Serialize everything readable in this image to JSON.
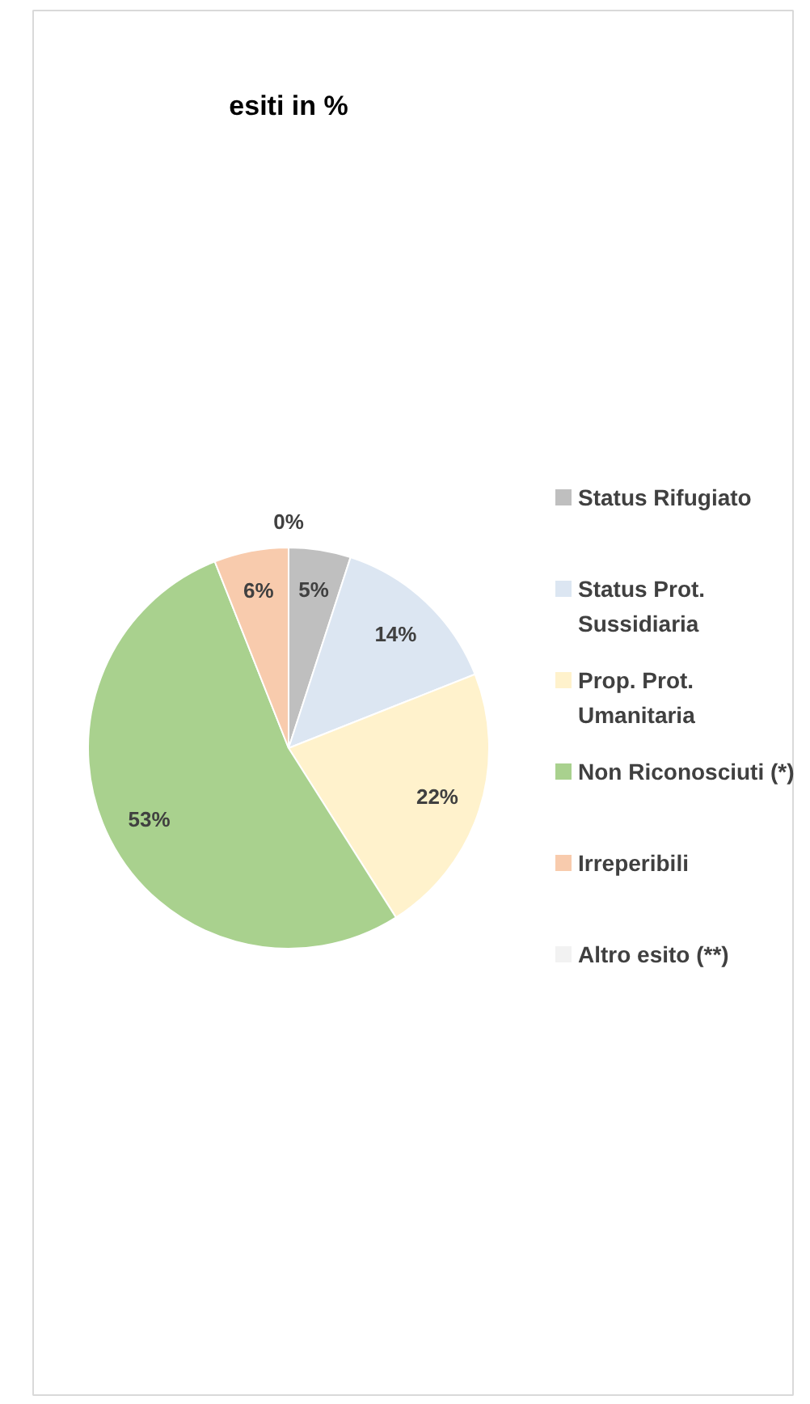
{
  "chart_data": {
    "type": "pie",
    "title": "esiti in %",
    "categories": [
      "Status Rifugiato",
      "Status Prot. Sussidiaria",
      "Prop. Prot. Umanitaria",
      "Non Riconosciuti (*)",
      "Irreperibili",
      "Altro esito (**)"
    ],
    "values": [
      5,
      14,
      22,
      53,
      6,
      0
    ],
    "colors": [
      "#bfbfbf",
      "#dce6f2",
      "#fff2cc",
      "#a9d18e",
      "#f8cbad",
      "#f2f2f2"
    ],
    "value_labels": [
      "5%",
      "14%",
      "22%",
      "53%",
      "6%",
      "0%"
    ],
    "legend": "right"
  }
}
